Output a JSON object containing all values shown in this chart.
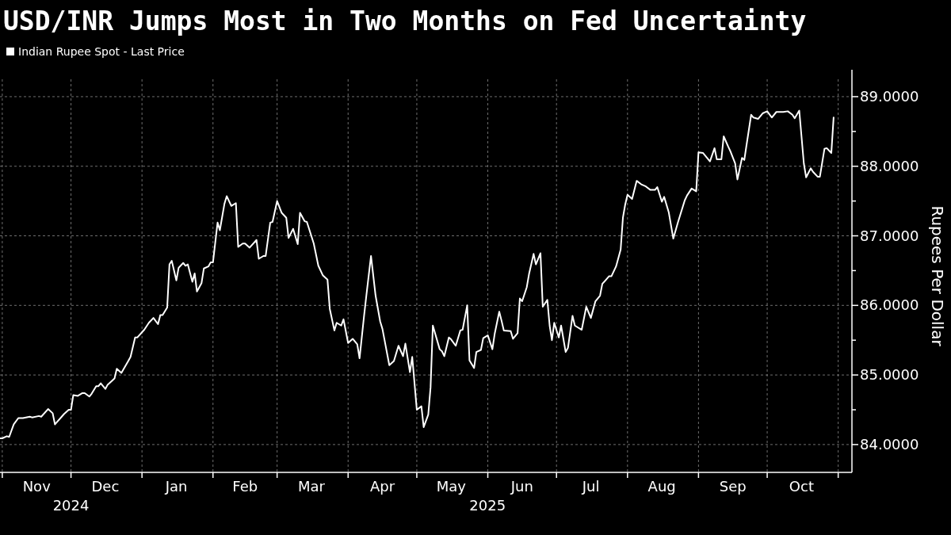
{
  "chart_data": {
    "type": "line",
    "title": "USD/INR Jumps Most in Two Months on Fed Uncertainty",
    "ylabel": "Rupees Per Dollar",
    "legend": "top left",
    "grid": true,
    "line_style": "solid",
    "marker": "none",
    "xlim": [
      "2024-10-31",
      "2025-11-07"
    ],
    "xticks": [
      {
        "value": "2024-11-01",
        "label": null
      },
      {
        "value": "2024-11-16",
        "label": "Nov"
      },
      {
        "value": "2024-12-01",
        "label": null
      },
      {
        "value": "2024-12-16",
        "label": "Dec"
      },
      {
        "value": "2025-01-01",
        "label": null
      },
      {
        "value": "2025-01-16",
        "label": "Jan"
      },
      {
        "value": "2025-02-01",
        "label": null
      },
      {
        "value": "2025-02-15",
        "label": "Feb"
      },
      {
        "value": "2025-03-01",
        "label": null
      },
      {
        "value": "2025-03-16",
        "label": "Mar"
      },
      {
        "value": "2025-04-01",
        "label": null
      },
      {
        "value": "2025-04-16",
        "label": "Apr"
      },
      {
        "value": "2025-05-01",
        "label": null
      },
      {
        "value": "2025-05-16",
        "label": "May"
      },
      {
        "value": "2025-06-01",
        "label": null
      },
      {
        "value": "2025-06-16",
        "label": "Jun"
      },
      {
        "value": "2025-07-01",
        "label": null
      },
      {
        "value": "2025-07-16",
        "label": "Jul"
      },
      {
        "value": "2025-08-01",
        "label": null
      },
      {
        "value": "2025-08-16",
        "label": "Aug"
      },
      {
        "value": "2025-09-01",
        "label": null
      },
      {
        "value": "2025-09-16",
        "label": "Sep"
      },
      {
        "value": "2025-10-01",
        "label": null
      },
      {
        "value": "2025-10-16",
        "label": "Oct"
      },
      {
        "value": "2025-11-01",
        "label": null
      }
    ],
    "ylim": [
      83.6,
      89.25
    ],
    "yticks": [
      {
        "value": 84,
        "label": "84.0000"
      },
      {
        "value": 84.5,
        "label": null
      },
      {
        "value": 85,
        "label": "85.0000"
      },
      {
        "value": 85.5,
        "label": null
      },
      {
        "value": 86,
        "label": "86.0000"
      },
      {
        "value": 86.5,
        "label": null
      },
      {
        "value": 87,
        "label": "87.0000"
      },
      {
        "value": 87.5,
        "label": null
      },
      {
        "value": 88,
        "label": "88.0000"
      },
      {
        "value": 88.5,
        "label": null
      },
      {
        "value": 89,
        "label": "89.0000"
      }
    ],
    "annotations": [
      "2024",
      "2025"
    ],
    "series": [
      {
        "name": "Indian Rupee Spot - Last Price",
        "color": "#ffffff",
        "x": [
          "2024-10-31",
          "2024-11-01",
          "2024-11-03",
          "2024-11-04",
          "2024-11-06",
          "2024-11-08",
          "2024-11-10",
          "2024-11-13",
          "2024-11-14",
          "2024-11-17",
          "2024-11-18",
          "2024-11-21",
          "2024-11-23",
          "2024-11-24",
          "2024-11-28",
          "2024-11-30",
          "2024-12-01",
          "2024-12-02",
          "2024-12-04",
          "2024-12-06",
          "2024-12-07",
          "2024-12-09",
          "2024-12-10",
          "2024-12-12",
          "2024-12-13",
          "2024-12-14",
          "2024-12-16",
          "2024-12-17",
          "2024-12-20",
          "2024-12-21",
          "2024-12-23",
          "2024-12-26",
          "2024-12-27",
          "2024-12-29",
          "2024-12-30",
          "2025-01-02",
          "2025-01-04",
          "2025-01-06",
          "2025-01-08",
          "2025-01-09",
          "2025-01-10",
          "2025-01-12",
          "2025-01-13",
          "2025-01-14",
          "2025-01-16",
          "2025-01-17",
          "2025-01-19",
          "2025-01-20",
          "2025-01-21",
          "2025-01-23",
          "2025-01-24",
          "2025-01-25",
          "2025-01-27",
          "2025-01-28",
          "2025-01-30",
          "2025-01-31",
          "2025-02-01",
          "2025-02-03",
          "2025-02-04",
          "2025-02-06",
          "2025-02-07",
          "2025-02-09",
          "2025-02-11",
          "2025-02-12",
          "2025-02-14",
          "2025-02-15",
          "2025-02-17",
          "2025-02-20",
          "2025-02-21",
          "2025-02-23",
          "2025-02-24",
          "2025-02-26",
          "2025-02-27",
          "2025-03-01",
          "2025-03-03",
          "2025-03-05",
          "2025-03-06",
          "2025-03-08",
          "2025-03-10",
          "2025-03-11",
          "2025-03-13",
          "2025-03-14",
          "2025-03-17",
          "2025-03-19",
          "2025-03-21",
          "2025-03-23",
          "2025-03-24",
          "2025-03-26",
          "2025-03-27",
          "2025-03-29",
          "2025-03-30",
          "2025-04-01",
          "2025-04-03",
          "2025-04-05",
          "2025-04-06",
          "2025-04-08",
          "2025-04-09",
          "2025-04-11",
          "2025-04-13",
          "2025-04-15",
          "2025-04-16",
          "2025-04-19",
          "2025-04-21",
          "2025-04-23",
          "2025-04-25",
          "2025-04-26",
          "2025-04-28",
          "2025-04-29",
          "2025-05-01",
          "2025-05-03",
          "2025-05-04",
          "2025-05-06",
          "2025-05-07",
          "2025-05-08",
          "2025-05-11",
          "2025-05-12",
          "2025-05-13",
          "2025-05-15",
          "2025-05-16",
          "2025-05-18",
          "2025-05-20",
          "2025-05-21",
          "2025-05-23",
          "2025-05-24",
          "2025-05-26",
          "2025-05-27",
          "2025-05-29",
          "2025-05-30",
          "2025-06-01",
          "2025-06-03",
          "2025-06-04",
          "2025-06-06",
          "2025-06-07",
          "2025-06-08",
          "2025-06-11",
          "2025-06-12",
          "2025-06-14",
          "2025-06-15",
          "2025-06-16",
          "2025-06-18",
          "2025-06-19",
          "2025-06-21",
          "2025-06-22",
          "2025-06-24",
          "2025-06-25",
          "2025-06-27",
          "2025-06-28",
          "2025-06-29",
          "2025-06-30",
          "2025-07-02",
          "2025-07-03",
          "2025-07-05",
          "2025-07-06",
          "2025-07-08",
          "2025-07-09",
          "2025-07-12",
          "2025-07-14",
          "2025-07-16",
          "2025-07-18",
          "2025-07-20",
          "2025-07-21",
          "2025-07-24",
          "2025-07-25",
          "2025-07-27",
          "2025-07-29",
          "2025-07-30",
          "2025-07-31",
          "2025-08-01",
          "2025-08-03",
          "2025-08-05",
          "2025-08-07",
          "2025-08-09",
          "2025-08-11",
          "2025-08-13",
          "2025-08-14",
          "2025-08-16",
          "2025-08-17",
          "2025-08-19",
          "2025-08-21",
          "2025-08-23",
          "2025-08-26",
          "2025-08-27",
          "2025-08-29",
          "2025-08-31",
          "2025-09-01",
          "2025-09-03",
          "2025-09-06",
          "2025-09-08",
          "2025-09-09",
          "2025-09-11",
          "2025-09-12",
          "2025-09-14",
          "2025-09-15",
          "2025-09-17",
          "2025-09-18",
          "2025-09-20",
          "2025-09-21",
          "2025-09-22",
          "2025-09-24",
          "2025-09-25",
          "2025-09-27",
          "2025-09-29",
          "2025-10-01",
          "2025-10-03",
          "2025-10-05",
          "2025-10-08",
          "2025-10-10",
          "2025-10-12",
          "2025-10-13",
          "2025-10-15",
          "2025-10-17",
          "2025-10-18",
          "2025-10-20",
          "2025-10-21",
          "2025-10-23",
          "2025-10-24",
          "2025-10-26",
          "2025-10-27",
          "2025-10-29",
          "2025-10-30"
        ],
        "values": [
          84.09,
          84.09,
          84.12,
          84.11,
          84.29,
          84.38,
          84.38,
          84.4,
          84.39,
          84.41,
          84.4,
          84.51,
          84.45,
          84.29,
          84.44,
          84.5,
          84.5,
          84.71,
          84.7,
          84.74,
          84.74,
          84.69,
          84.73,
          84.84,
          84.84,
          84.88,
          84.8,
          84.86,
          84.95,
          85.09,
          85.03,
          85.2,
          85.26,
          85.54,
          85.54,
          85.65,
          85.75,
          85.82,
          85.73,
          85.86,
          85.86,
          85.97,
          86.59,
          86.64,
          86.36,
          86.54,
          86.61,
          86.57,
          86.59,
          86.34,
          86.46,
          86.2,
          86.32,
          86.53,
          86.56,
          86.62,
          86.62,
          87.19,
          87.08,
          87.46,
          87.57,
          87.43,
          87.47,
          86.84,
          86.89,
          86.89,
          86.83,
          86.94,
          86.67,
          86.71,
          86.71,
          87.19,
          87.2,
          87.5,
          87.33,
          87.26,
          86.97,
          87.1,
          86.88,
          87.33,
          87.21,
          87.2,
          86.89,
          86.57,
          86.43,
          86.37,
          85.95,
          85.64,
          85.75,
          85.71,
          85.8,
          85.46,
          85.52,
          85.44,
          85.24,
          85.86,
          86.15,
          86.71,
          86.14,
          85.77,
          85.66,
          85.14,
          85.2,
          85.42,
          85.27,
          85.45,
          85.04,
          85.26,
          84.5,
          84.55,
          84.25,
          84.43,
          84.82,
          85.71,
          85.37,
          85.34,
          85.27,
          85.54,
          85.51,
          85.42,
          85.64,
          85.65,
          86.0,
          85.21,
          85.1,
          85.33,
          85.36,
          85.53,
          85.57,
          85.37,
          85.59,
          85.91,
          85.78,
          85.64,
          85.63,
          85.52,
          85.6,
          86.1,
          86.06,
          86.26,
          86.45,
          86.74,
          86.59,
          86.75,
          85.98,
          86.08,
          85.71,
          85.5,
          85.75,
          85.54,
          85.71,
          85.33,
          85.39,
          85.85,
          85.71,
          85.65,
          85.98,
          85.82,
          86.06,
          86.14,
          86.31,
          86.42,
          86.42,
          86.56,
          86.8,
          87.26,
          87.45,
          87.59,
          87.53,
          87.79,
          87.74,
          87.71,
          87.66,
          87.66,
          87.7,
          87.49,
          87.56,
          87.34,
          86.96,
          87.19,
          87.51,
          87.58,
          87.68,
          87.64,
          88.2,
          88.19,
          88.07,
          88.26,
          88.1,
          88.1,
          88.43,
          88.28,
          88.21,
          88.04,
          87.81,
          88.12,
          88.09,
          88.31,
          88.74,
          88.7,
          88.68,
          88.76,
          88.79,
          88.7,
          88.78,
          88.78,
          88.79,
          88.74,
          88.69,
          88.8,
          88.04,
          87.84,
          87.97,
          87.92,
          87.85,
          87.85,
          88.25,
          88.26,
          88.19,
          88.7
        ]
      }
    ]
  }
}
